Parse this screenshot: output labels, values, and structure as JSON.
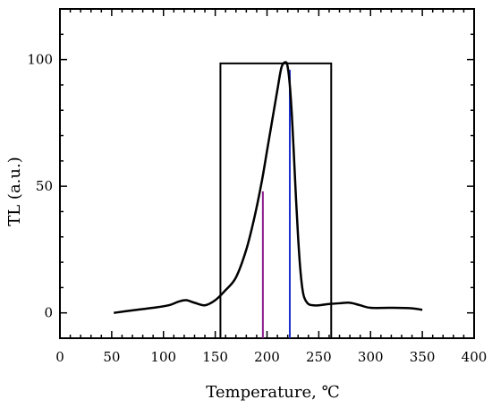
{
  "chart_data": {
    "type": "line",
    "xlabel": "Temperature, ℃",
    "ylabel": "TL (a.u.)",
    "xlim": [
      0,
      400
    ],
    "ylim": [
      -10,
      120
    ],
    "x_ticks": [
      0,
      50,
      100,
      150,
      200,
      250,
      300,
      350,
      400
    ],
    "y_ticks": [
      0,
      50,
      100
    ],
    "grid": false,
    "legend": "none",
    "series": [
      {
        "color": "#000000",
        "x": [
          52,
          70,
          90,
          105,
          115,
          122,
          130,
          140,
          150,
          160,
          170,
          180,
          188,
          195,
          200,
          205,
          210,
          214,
          218,
          220,
          222,
          224,
          226,
          228,
          230,
          232,
          234,
          236,
          240,
          245,
          250,
          260,
          270,
          280,
          290,
          300,
          320,
          340,
          350
        ],
        "y": [
          0,
          1,
          2,
          3,
          4.5,
          5,
          4,
          3,
          5,
          9,
          14,
          25,
          38,
          52,
          64,
          76,
          88,
          97,
          99,
          97,
          90,
          78,
          62,
          45,
          30,
          18,
          10,
          6,
          3.5,
          3,
          3,
          3.5,
          3.8,
          4,
          3,
          2,
          2,
          1.8,
          1.2
        ]
      }
    ],
    "annotations": [
      {
        "type": "rectangle",
        "x0": 155,
        "x1": 262,
        "y0": -10,
        "y1": 98.5,
        "color": "#000000"
      },
      {
        "type": "vline",
        "x": 196,
        "y0": -10,
        "y1": 48,
        "color": "#8b1a8b"
      },
      {
        "type": "vline",
        "x": 222,
        "y0": -10,
        "y1": 96,
        "color": "#1a2fcc"
      }
    ]
  }
}
